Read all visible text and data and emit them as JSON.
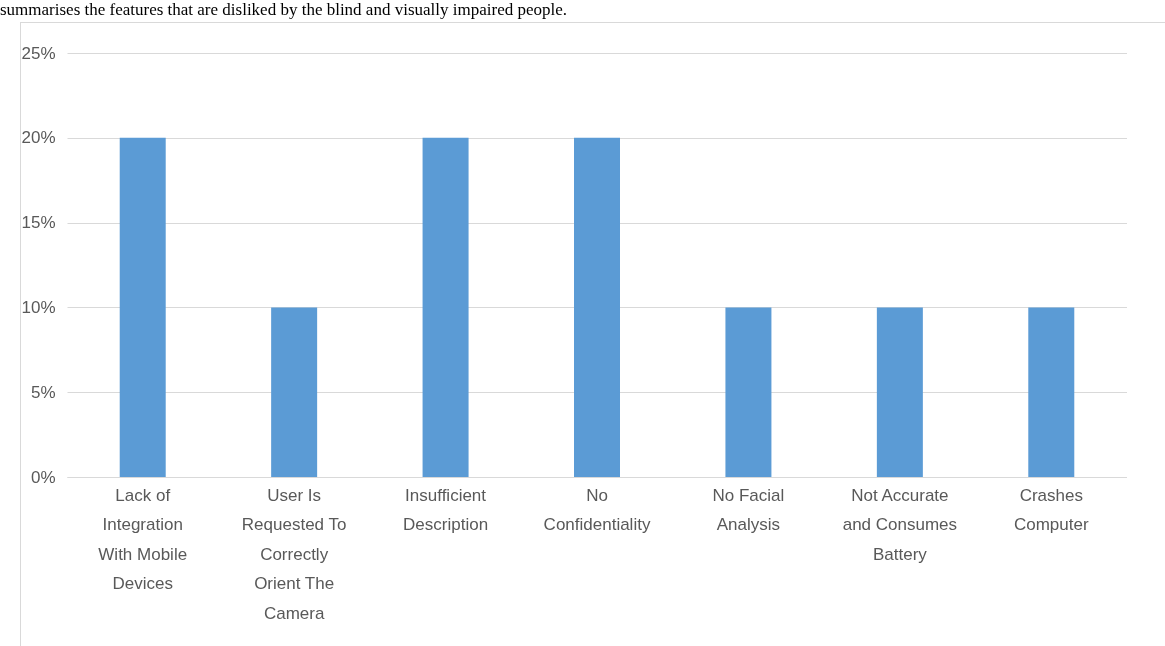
{
  "chart_data": {
    "type": "bar",
    "categories": [
      "Lack of Integration With Mobile Devices",
      "User Is Requested To Correctly Orient The Camera",
      "Insufficient Description",
      "No Confidentiality",
      "No Facial Analysis",
      "Not Accurate and Consumes Battery",
      "Crashes Computer"
    ],
    "values": [
      20,
      10,
      20,
      20,
      10,
      10,
      10
    ],
    "color": "#5b9bd5",
    "ylim": [
      0,
      25
    ],
    "yticks": [
      {
        "value": 0,
        "label": "0%"
      },
      {
        "value": 5,
        "label": "5%"
      },
      {
        "value": 10,
        "label": "10%"
      },
      {
        "value": 15,
        "label": "15%"
      },
      {
        "value": 20,
        "label": "20%"
      },
      {
        "value": 25,
        "label": "25%"
      }
    ],
    "grid": "y",
    "annotations": [
      "summarises the features that are disliked by the blind and visually impaired people."
    ]
  }
}
